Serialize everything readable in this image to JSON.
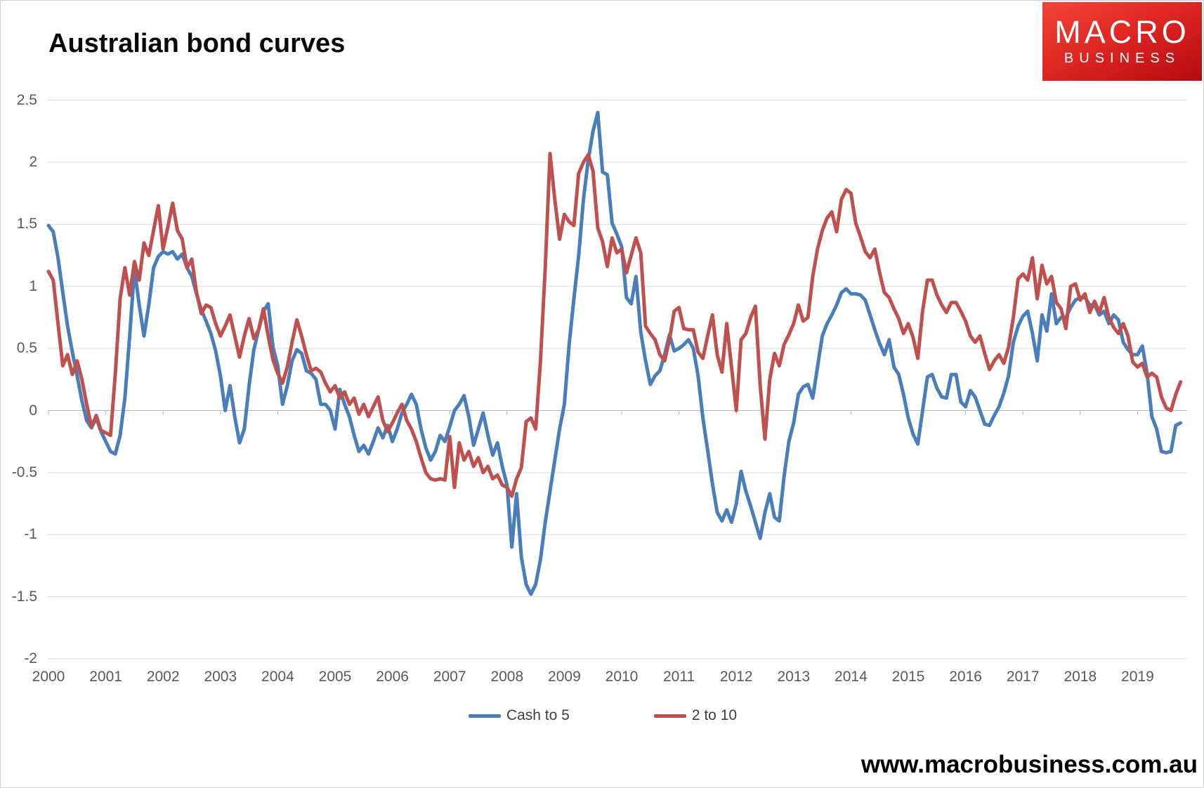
{
  "header": {
    "title": "Australian bond curves"
  },
  "logo": {
    "line1": "MACRO",
    "line2": "BUSINESS",
    "bg_color": "#e02723"
  },
  "footer": {
    "url": "www.macrobusiness.com.au"
  },
  "chart_data": {
    "type": "line",
    "title": "Australian bond curves",
    "x_unit": "monthly",
    "x_start": "2000-01",
    "x_end": "2019-10",
    "xlabel": "",
    "ylabel": "",
    "ylim": [
      -2,
      2.5
    ],
    "grid": true,
    "legend_position": "bottom",
    "x_tick_labels": [
      "2000",
      "2001",
      "2002",
      "2003",
      "2004",
      "2005",
      "2006",
      "2007",
      "2008",
      "2009",
      "2010",
      "2011",
      "2012",
      "2013",
      "2014",
      "2015",
      "2016",
      "2017",
      "2018",
      "2019"
    ],
    "y_ticks": [
      {
        "v": 2.5,
        "label": "2.5"
      },
      {
        "v": 2,
        "label": "2"
      },
      {
        "v": 1.5,
        "label": "1.5"
      },
      {
        "v": 1,
        "label": "1"
      },
      {
        "v": 0.5,
        "label": "0.5"
      },
      {
        "v": 0,
        "label": "0"
      },
      {
        "v": -0.5,
        "label": "-0.5"
      },
      {
        "v": -1,
        "label": "-1"
      },
      {
        "v": -1.5,
        "label": "-1.5"
      },
      {
        "v": -2,
        "label": "-2"
      }
    ],
    "series": [
      {
        "name": "Cash to 5",
        "color": "#4a7ebb",
        "values": [
          1.49,
          1.44,
          1.23,
          0.95,
          0.68,
          0.47,
          0.28,
          0.08,
          -0.08,
          -0.14,
          -0.06,
          -0.17,
          -0.25,
          -0.33,
          -0.35,
          -0.2,
          0.1,
          0.6,
          1.14,
          0.85,
          0.6,
          0.85,
          1.15,
          1.24,
          1.28,
          1.26,
          1.28,
          1.22,
          1.26,
          1.15,
          1.08,
          0.94,
          0.81,
          0.72,
          0.62,
          0.48,
          0.28,
          0.0,
          0.2,
          -0.05,
          -0.26,
          -0.15,
          0.2,
          0.49,
          0.65,
          0.8,
          0.86,
          0.51,
          0.36,
          0.05,
          0.2,
          0.4,
          0.49,
          0.46,
          0.32,
          0.3,
          0.25,
          0.05,
          0.05,
          0.0,
          -0.15,
          0.17,
          0.05,
          -0.05,
          -0.2,
          -0.33,
          -0.28,
          -0.35,
          -0.25,
          -0.14,
          -0.22,
          -0.12,
          -0.25,
          -0.15,
          -0.02,
          0.05,
          0.13,
          0.05,
          -0.15,
          -0.3,
          -0.4,
          -0.33,
          -0.2,
          -0.25,
          -0.13,
          0.0,
          0.05,
          0.12,
          -0.05,
          -0.28,
          -0.15,
          -0.02,
          -0.2,
          -0.36,
          -0.26,
          -0.45,
          -0.6,
          -1.1,
          -0.67,
          -1.18,
          -1.4,
          -1.48,
          -1.4,
          -1.2,
          -0.9,
          -0.65,
          -0.4,
          -0.15,
          0.05,
          0.53,
          0.9,
          1.25,
          1.7,
          2.02,
          2.25,
          2.4,
          1.92,
          1.9,
          1.51,
          1.42,
          1.32,
          0.91,
          0.86,
          1.08,
          0.63,
          0.4,
          0.21,
          0.28,
          0.32,
          0.45,
          0.61,
          0.48,
          0.5,
          0.53,
          0.57,
          0.5,
          0.28,
          -0.06,
          -0.32,
          -0.59,
          -0.82,
          -0.89,
          -0.8,
          -0.9,
          -0.75,
          -0.49,
          -0.65,
          -0.77,
          -0.9,
          -1.03,
          -0.82,
          -0.67,
          -0.86,
          -0.89,
          -0.53,
          -0.25,
          -0.1,
          0.13,
          0.19,
          0.21,
          0.1,
          0.35,
          0.6,
          0.7,
          0.77,
          0.85,
          0.95,
          0.98,
          0.94,
          0.94,
          0.93,
          0.89,
          0.77,
          0.65,
          0.54,
          0.45,
          0.57,
          0.35,
          0.29,
          0.13,
          -0.06,
          -0.19,
          -0.27,
          0.0,
          0.27,
          0.29,
          0.18,
          0.11,
          0.1,
          0.29,
          0.29,
          0.07,
          0.03,
          0.16,
          0.11,
          0.0,
          -0.11,
          -0.12,
          -0.04,
          0.03,
          0.14,
          0.28,
          0.55,
          0.68,
          0.76,
          0.8,
          0.62,
          0.4,
          0.77,
          0.64,
          0.94,
          0.7,
          0.75,
          0.75,
          0.83,
          0.89,
          0.91,
          0.91,
          0.85,
          0.85,
          0.77,
          0.8,
          0.7,
          0.77,
          0.73,
          0.55,
          0.49,
          0.45,
          0.45,
          0.52,
          0.3,
          -0.05,
          -0.15,
          -0.33,
          -0.34,
          -0.33,
          -0.12,
          -0.1
        ]
      },
      {
        "name": "2 to 10",
        "color": "#c0504d",
        "values": [
          1.12,
          1.05,
          0.7,
          0.36,
          0.45,
          0.29,
          0.4,
          0.25,
          0.05,
          -0.13,
          -0.04,
          -0.16,
          -0.18,
          -0.2,
          0.3,
          0.9,
          1.15,
          0.93,
          1.2,
          1.05,
          1.35,
          1.25,
          1.45,
          1.65,
          1.3,
          1.48,
          1.67,
          1.45,
          1.38,
          1.15,
          1.22,
          0.95,
          0.78,
          0.85,
          0.83,
          0.7,
          0.6,
          0.68,
          0.77,
          0.6,
          0.43,
          0.6,
          0.74,
          0.58,
          0.65,
          0.82,
          0.6,
          0.41,
          0.3,
          0.22,
          0.35,
          0.55,
          0.73,
          0.6,
          0.45,
          0.32,
          0.34,
          0.31,
          0.22,
          0.15,
          0.2,
          0.1,
          0.15,
          0.05,
          0.1,
          -0.03,
          0.05,
          -0.05,
          0.03,
          0.11,
          -0.08,
          -0.17,
          -0.1,
          -0.02,
          0.05,
          -0.08,
          -0.15,
          -0.25,
          -0.38,
          -0.5,
          -0.55,
          -0.56,
          -0.55,
          -0.56,
          -0.21,
          -0.62,
          -0.26,
          -0.4,
          -0.33,
          -0.45,
          -0.38,
          -0.5,
          -0.45,
          -0.55,
          -0.52,
          -0.6,
          -0.62,
          -0.69,
          -0.55,
          -0.46,
          -0.09,
          -0.06,
          -0.15,
          0.4,
          1.15,
          2.07,
          1.7,
          1.38,
          1.58,
          1.52,
          1.49,
          1.91,
          2.0,
          2.06,
          1.93,
          1.47,
          1.36,
          1.16,
          1.39,
          1.27,
          1.3,
          1.11,
          1.25,
          1.39,
          1.27,
          0.68,
          0.62,
          0.57,
          0.45,
          0.4,
          0.57,
          0.8,
          0.83,
          0.66,
          0.65,
          0.65,
          0.47,
          0.42,
          0.6,
          0.77,
          0.45,
          0.31,
          0.7,
          0.35,
          0.0,
          0.57,
          0.62,
          0.75,
          0.84,
          0.2,
          -0.23,
          0.25,
          0.46,
          0.36,
          0.53,
          0.61,
          0.7,
          0.85,
          0.72,
          0.75,
          1.08,
          1.3,
          1.45,
          1.55,
          1.6,
          1.44,
          1.7,
          1.78,
          1.75,
          1.51,
          1.4,
          1.28,
          1.23,
          1.3,
          1.11,
          0.95,
          0.91,
          0.82,
          0.74,
          0.62,
          0.7,
          0.59,
          0.42,
          0.8,
          1.05,
          1.05,
          0.93,
          0.85,
          0.79,
          0.87,
          0.87,
          0.8,
          0.72,
          0.6,
          0.55,
          0.6,
          0.46,
          0.33,
          0.4,
          0.45,
          0.38,
          0.51,
          0.75,
          1.06,
          1.1,
          1.05,
          1.23,
          0.9,
          1.17,
          1.02,
          1.08,
          0.87,
          0.82,
          0.66,
          1.0,
          1.02,
          0.89,
          0.94,
          0.79,
          0.88,
          0.79,
          0.91,
          0.75,
          0.67,
          0.62,
          0.7,
          0.6,
          0.39,
          0.35,
          0.38,
          0.27,
          0.3,
          0.27,
          0.11,
          0.02,
          0.0,
          0.13,
          0.23
        ]
      }
    ]
  }
}
